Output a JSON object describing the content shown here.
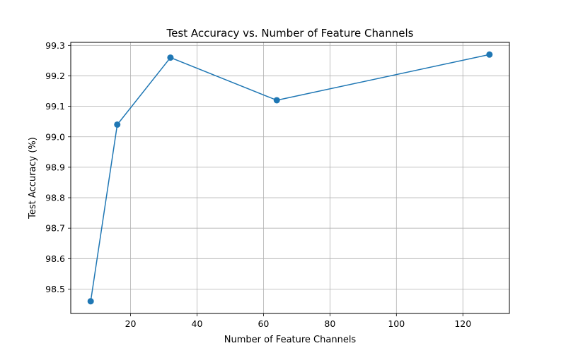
{
  "chart_data": {
    "type": "line",
    "title": "Test Accuracy vs. Number of Feature Channels",
    "xlabel": "Number of Feature Channels",
    "ylabel": "Test Accuracy (%)",
    "xlim": [
      2,
      134
    ],
    "ylim": [
      98.42,
      99.31
    ],
    "xticks": [
      20,
      40,
      60,
      80,
      100,
      120
    ],
    "yticks": [
      "98.5",
      "98.6",
      "98.7",
      "98.8",
      "98.9",
      "99.0",
      "99.1",
      "99.2",
      "99.3"
    ],
    "grid": true,
    "series": [
      {
        "marker": "circle",
        "color": "#1f77b4",
        "x": [
          8,
          16,
          32,
          64,
          128
        ],
        "y": [
          98.46,
          99.04,
          99.26,
          99.12,
          99.27
        ]
      }
    ]
  }
}
